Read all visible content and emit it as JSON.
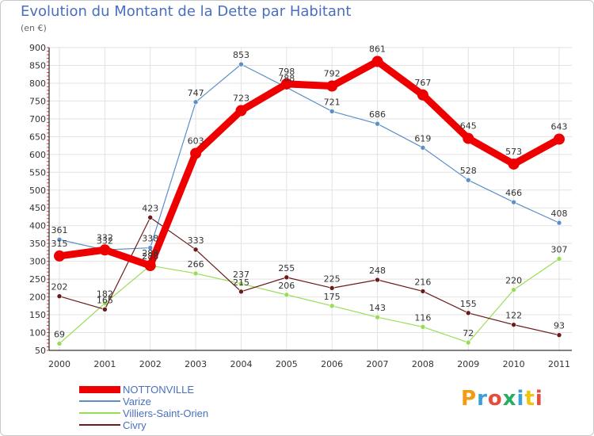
{
  "title": "Evolution du Montant de la Dette par Habitant",
  "unit": "(en €)",
  "logo_text": "Proxiti",
  "logo_colors": [
    "#f39c12",
    "#3aa0d8",
    "#e74c3c",
    "#27ae60",
    "#3aa0d8",
    "#f1c40f",
    "#e74c3c"
  ],
  "colors": {
    "background": "#ffffff",
    "grid": "#e2e2e2",
    "axis": "#000000",
    "title": "#4a6fc0",
    "label_text": "#333333",
    "minor_tick": "#ff3b3b"
  },
  "chart_data": {
    "type": "line",
    "title": "Evolution du Montant de la Dette par Habitant",
    "ylabel": "(en €)",
    "xlabel": "",
    "x": [
      "2000",
      "2001",
      "2002",
      "2003",
      "2004",
      "2005",
      "2006",
      "2007",
      "2008",
      "2009",
      "2010",
      "2011"
    ],
    "ylim": [
      50,
      900
    ],
    "yticks": [
      50,
      100,
      150,
      200,
      250,
      300,
      350,
      400,
      450,
      500,
      550,
      600,
      650,
      700,
      750,
      800,
      850,
      900
    ],
    "grid": true,
    "legend_position": "bottom-left",
    "series": [
      {
        "name": "NOTTONVILLE",
        "color": "#ee0000",
        "line_width": 9,
        "marker": 7,
        "values": [
          315,
          332,
          288,
          603,
          723,
          798,
          792,
          861,
          767,
          645,
          573,
          643
        ]
      },
      {
        "name": "Varize",
        "color": "#5b8fc8",
        "line_width": 1.2,
        "marker": 3,
        "values": [
          361,
          332,
          338,
          747,
          853,
          788,
          721,
          686,
          619,
          528,
          466,
          408
        ]
      },
      {
        "name": "Villiers-Saint-Orien",
        "color": "#99dd55",
        "line_width": 1.2,
        "marker": 3,
        "values": [
          69,
          182,
          288,
          266,
          237,
          206,
          175,
          143,
          116,
          72,
          220,
          307
        ]
      },
      {
        "name": "Civry",
        "color": "#6b1a1a",
        "line_width": 1.2,
        "marker": 3,
        "values": [
          202,
          165,
          423,
          333,
          215,
          255,
          225,
          248,
          216,
          155,
          122,
          93
        ]
      }
    ]
  }
}
